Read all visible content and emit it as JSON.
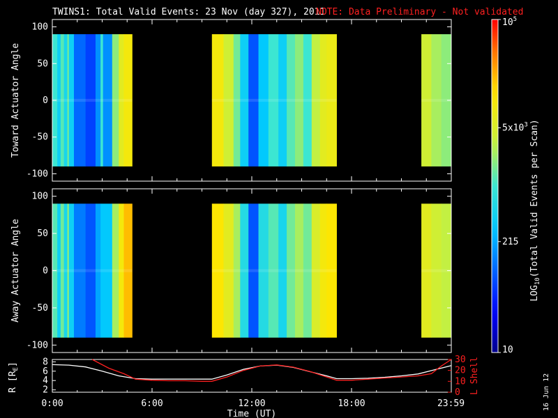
{
  "header": {
    "title": "TWINS1: Total Valid Events: 23 Nov (day 327), 2011",
    "note": "NOTE: Data Preliminary - Not validated",
    "note_color": "#ff2020"
  },
  "footer": {
    "stamp": "16 Jun 12"
  },
  "chart_data": [
    {
      "type": "heatmap",
      "panel": "top",
      "ylabel": "Toward Actuator Angle",
      "ylim": [
        -110,
        110
      ],
      "yticks": [
        100,
        50,
        0,
        -50,
        -100
      ],
      "xlim_hours": [
        0,
        24
      ],
      "data_y_range": [
        -90,
        90
      ],
      "data_segments_hours": [
        [
          0.0,
          4.8
        ],
        [
          9.6,
          17.1
        ],
        [
          22.2,
          24.0
        ]
      ],
      "columns": [
        {
          "from": 0.0,
          "to": 0.3,
          "value": 3.0
        },
        {
          "from": 0.3,
          "to": 0.5,
          "value": 2.6
        },
        {
          "from": 0.5,
          "to": 0.7,
          "value": 3.1
        },
        {
          "from": 0.7,
          "to": 0.9,
          "value": 2.7
        },
        {
          "from": 0.9,
          "to": 1.0,
          "value": 3.2
        },
        {
          "from": 1.0,
          "to": 1.3,
          "value": 2.6
        },
        {
          "from": 1.3,
          "to": 2.0,
          "value": 2.0
        },
        {
          "from": 2.0,
          "to": 2.6,
          "value": 1.8
        },
        {
          "from": 2.6,
          "to": 2.9,
          "value": 2.2
        },
        {
          "from": 2.9,
          "to": 3.05,
          "value": 3.0
        },
        {
          "from": 3.05,
          "to": 3.6,
          "value": 2.2
        },
        {
          "from": 3.6,
          "to": 4.0,
          "value": 3.3
        },
        {
          "from": 4.0,
          "to": 4.3,
          "value": 3.8
        },
        {
          "from": 4.3,
          "to": 4.8,
          "value": 4.0
        },
        {
          "from": 9.6,
          "to": 10.3,
          "value": 4.0
        },
        {
          "from": 10.3,
          "to": 10.9,
          "value": 3.6
        },
        {
          "from": 10.9,
          "to": 11.3,
          "value": 3.2
        },
        {
          "from": 11.3,
          "to": 11.8,
          "value": 2.6
        },
        {
          "from": 11.8,
          "to": 12.4,
          "value": 1.9
        },
        {
          "from": 12.4,
          "to": 13.0,
          "value": 2.5
        },
        {
          "from": 13.0,
          "to": 13.6,
          "value": 3.0
        },
        {
          "from": 13.6,
          "to": 14.1,
          "value": 2.6
        },
        {
          "from": 14.1,
          "to": 14.6,
          "value": 3.1
        },
        {
          "from": 14.6,
          "to": 15.1,
          "value": 3.3
        },
        {
          "from": 15.1,
          "to": 15.6,
          "value": 3.0
        },
        {
          "from": 15.6,
          "to": 16.1,
          "value": 3.5
        },
        {
          "from": 16.1,
          "to": 16.5,
          "value": 3.8
        },
        {
          "from": 16.5,
          "to": 17.1,
          "value": 3.9
        },
        {
          "from": 22.2,
          "to": 22.8,
          "value": 3.6
        },
        {
          "from": 22.8,
          "to": 23.4,
          "value": 3.4
        },
        {
          "from": 23.4,
          "to": 24.0,
          "value": 3.3
        }
      ]
    },
    {
      "type": "heatmap",
      "panel": "middle",
      "ylabel": "Away Actuator Angle",
      "ylim": [
        -110,
        110
      ],
      "yticks": [
        100,
        50,
        0,
        -50,
        -100
      ],
      "xlim_hours": [
        0,
        24
      ],
      "data_y_range": [
        -90,
        90
      ],
      "data_segments_hours": [
        [
          0.0,
          4.8
        ],
        [
          9.6,
          17.1
        ],
        [
          22.2,
          24.0
        ]
      ],
      "columns": [
        {
          "from": 0.0,
          "to": 0.3,
          "value": 3.1
        },
        {
          "from": 0.3,
          "to": 0.5,
          "value": 2.6
        },
        {
          "from": 0.5,
          "to": 0.7,
          "value": 3.2
        },
        {
          "from": 0.7,
          "to": 0.9,
          "value": 2.7
        },
        {
          "from": 0.9,
          "to": 1.0,
          "value": 3.3
        },
        {
          "from": 1.0,
          "to": 1.3,
          "value": 2.6
        },
        {
          "from": 1.3,
          "to": 2.0,
          "value": 2.1
        },
        {
          "from": 2.0,
          "to": 2.6,
          "value": 1.9
        },
        {
          "from": 2.6,
          "to": 2.9,
          "value": 2.3
        },
        {
          "from": 2.9,
          "to": 3.6,
          "value": 2.5
        },
        {
          "from": 3.6,
          "to": 4.0,
          "value": 3.4
        },
        {
          "from": 4.0,
          "to": 4.3,
          "value": 4.0
        },
        {
          "from": 4.3,
          "to": 4.8,
          "value": 4.3
        },
        {
          "from": 9.6,
          "to": 10.3,
          "value": 4.1
        },
        {
          "from": 10.3,
          "to": 10.9,
          "value": 3.8
        },
        {
          "from": 10.9,
          "to": 11.3,
          "value": 3.4
        },
        {
          "from": 11.3,
          "to": 11.8,
          "value": 2.8
        },
        {
          "from": 11.8,
          "to": 12.4,
          "value": 1.9
        },
        {
          "from": 12.4,
          "to": 13.0,
          "value": 2.8
        },
        {
          "from": 13.0,
          "to": 13.6,
          "value": 3.1
        },
        {
          "from": 13.6,
          "to": 14.1,
          "value": 2.7
        },
        {
          "from": 14.1,
          "to": 14.6,
          "value": 3.2
        },
        {
          "from": 14.6,
          "to": 15.1,
          "value": 3.4
        },
        {
          "from": 15.1,
          "to": 15.6,
          "value": 3.2
        },
        {
          "from": 15.6,
          "to": 16.1,
          "value": 3.7
        },
        {
          "from": 16.1,
          "to": 16.5,
          "value": 4.0
        },
        {
          "from": 16.5,
          "to": 17.1,
          "value": 4.1
        },
        {
          "from": 22.2,
          "to": 22.8,
          "value": 3.8
        },
        {
          "from": 22.8,
          "to": 23.4,
          "value": 3.6
        },
        {
          "from": 23.4,
          "to": 24.0,
          "value": 3.5
        }
      ]
    },
    {
      "type": "line",
      "panel": "bottom",
      "ylabel_left": "R [R",
      "ylabel_left_sub": "E",
      "ylabel_left_end": "]",
      "ylabel_right": "L Shell",
      "yticks_left": [
        2,
        4,
        6,
        8
      ],
      "ylim_left": [
        1.5,
        8.5
      ],
      "yticks_right": [
        0,
        10,
        20,
        30
      ],
      "ylim_right": [
        0,
        30
      ],
      "xlabel": "Time (UT)",
      "xlim_hours": [
        0,
        24
      ],
      "xticks": [
        {
          "h": 0,
          "label": "0:00"
        },
        {
          "h": 6,
          "label": "6:00"
        },
        {
          "h": 12,
          "label": "12:00"
        },
        {
          "h": 18,
          "label": "18:00"
        },
        {
          "h": 23.98,
          "label": "23:59"
        }
      ],
      "series": [
        {
          "axis": "left",
          "color": "#ffffff",
          "x": [
            0,
            1,
            2,
            3,
            4,
            5,
            6,
            7,
            8,
            9,
            9.6,
            10.5,
            11.5,
            12.5,
            13.5,
            14.5,
            15.5,
            16.5,
            17.1,
            18,
            19,
            20,
            21,
            22,
            23,
            24
          ],
          "y": [
            7.4,
            7.3,
            6.9,
            6.0,
            5.0,
            4.4,
            4.3,
            4.3,
            4.3,
            4.3,
            4.3,
            5.2,
            6.4,
            7.1,
            7.3,
            6.8,
            5.9,
            5.0,
            4.4,
            4.4,
            4.5,
            4.7,
            5.0,
            5.4,
            6.3,
            7.2
          ]
        },
        {
          "axis": "right",
          "color": "#ff2020",
          "x": [
            2.4,
            3.4,
            4.3,
            5.0,
            6.0,
            7.0,
            8.0,
            9.0,
            9.6,
            10.5,
            11.5,
            12.5,
            13.5,
            14.5,
            15.5,
            16.5,
            17.1,
            18,
            19,
            20,
            21,
            22,
            22.8,
            23.4,
            24
          ],
          "y": [
            30,
            22,
            17,
            12,
            11,
            10.5,
            10.5,
            10,
            10,
            14,
            20,
            24,
            25,
            23,
            19,
            14,
            11,
            11,
            12,
            13,
            14,
            15,
            17,
            24,
            30
          ]
        }
      ]
    },
    {
      "type": "colorbar",
      "label": "LOG",
      "label_sub": "10",
      "label_rest": "(Total Valid Events per Scan)",
      "log_range": [
        1,
        5
      ],
      "ticks": [
        {
          "value": 1,
          "label": "10"
        },
        {
          "value": 2.3324,
          "label": "215"
        },
        {
          "value": 3.699,
          "label": "5x10",
          "sup": "3"
        },
        {
          "value": 5,
          "label": "10",
          "sup": "5"
        }
      ]
    }
  ]
}
